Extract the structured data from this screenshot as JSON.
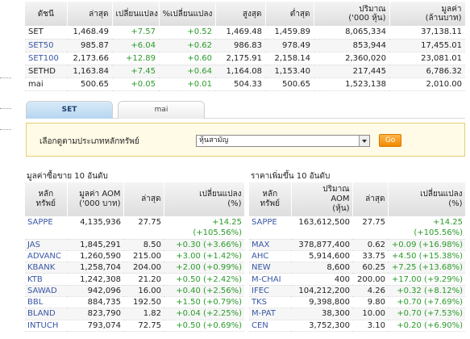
{
  "index_table": {
    "headers": [
      "ดัชนี",
      "ล่าสุด",
      "เปลี่ยนแปลง",
      "%เปลี่ยนแปลง",
      "สูงสุด",
      "ต่ำสุด",
      "ปริมาณ",
      "('000 หุ้น)",
      "มูลค่า",
      "(ล้านบาท)"
    ],
    "rows": [
      {
        "name": "SET",
        "last": "1,468.49",
        "change": "+7.57",
        "pct": "+0.52",
        "high": "1,469.48",
        "low": "1,459.89",
        "volume": "8,065,334",
        "value": "37,138.11"
      },
      {
        "name": "SET50",
        "last": "985.87",
        "change": "+6.04",
        "pct": "+0.62",
        "high": "986.83",
        "low": "978.49",
        "volume": "853,944",
        "value": "17,455.01"
      },
      {
        "name": "SET100",
        "last": "2,173.66",
        "change": "+12.89",
        "pct": "+0.60",
        "high": "2,175.91",
        "low": "2,158.14",
        "volume": "2,360,020",
        "value": "23,081.01"
      },
      {
        "name": "SETHD",
        "last": "1,163.84",
        "change": "+7.45",
        "pct": "+0.64",
        "high": "1,164.08",
        "low": "1,153.40",
        "volume": "217,445",
        "value": "6,786.32"
      },
      {
        "name": "mai",
        "last": "500.65",
        "change": "+0.05",
        "pct": "+0.01",
        "high": "504.33",
        "low": "500.65",
        "volume": "1,523,138",
        "value": "2,010.00"
      }
    ]
  },
  "tabs": {
    "set": "SET",
    "mai": "mai"
  },
  "filter": {
    "label": "เลือกดูตามประเภทหลักทรัพย์",
    "selected": "หุ้นสามัญ",
    "go": "Go"
  },
  "left_section": {
    "title": "มูลค่าซื้อขาย 10 อันดับ",
    "headers": [
      "หลัก",
      "ทรัพย์",
      "มูลค่า AOM",
      "('000 บาท)",
      "ล่าสุด",
      "เปลี่ยนแปลง",
      "(%)"
    ],
    "rows": [
      {
        "name": "SAPPE",
        "aom": "4,135,936",
        "last": "27.75",
        "change": "+14.25",
        "pct": "(+105.56%)"
      },
      {
        "name": "JAS",
        "aom": "1,845,291",
        "last": "8.50",
        "change": "+0.30 (+3.66%)"
      },
      {
        "name": "ADVANC",
        "aom": "1,260,590",
        "last": "215.00",
        "change": "+3.00 (+1.42%)"
      },
      {
        "name": "KBANK",
        "aom": "1,258,704",
        "last": "204.00",
        "change": "+2.00 (+0.99%)"
      },
      {
        "name": "KTB",
        "aom": "1,242,308",
        "last": "21.20",
        "change": "+0.50 (+2.42%)"
      },
      {
        "name": "SAWAD",
        "aom": "942,096",
        "last": "16.00",
        "change": "+0.40 (+2.56%)"
      },
      {
        "name": "BBL",
        "aom": "884,735",
        "last": "192.50",
        "change": "+1.50 (+0.79%)"
      },
      {
        "name": "BLAND",
        "aom": "823,790",
        "last": "1.82",
        "change": "+0.04 (+2.25%)"
      },
      {
        "name": "INTUCH",
        "aom": "793,074",
        "last": "72.75",
        "change": "+0.50 (+0.69%)"
      }
    ]
  },
  "right_section": {
    "title": "ราคาเพิ่มขึ้น 10 อันดับ",
    "headers": [
      "หลัก",
      "ทรัพย์",
      "ปริมาณ",
      "AOM",
      "(หุ้น)",
      "ล่าสุด",
      "เปลี่ยนแปลง",
      "(%)"
    ],
    "rows": [
      {
        "name": "SAPPE",
        "aom": "163,612,500",
        "last": "27.75",
        "change": "+14.25",
        "pct": "(+105.56%)"
      },
      {
        "name": "MAX",
        "aom": "378,877,400",
        "last": "0.62",
        "change": "+0.09 (+16.98%)"
      },
      {
        "name": "AHC",
        "aom": "5,914,600",
        "last": "33.75",
        "change": "+4.50 (+15.38%)"
      },
      {
        "name": "NEW",
        "aom": "8,600",
        "last": "60.25",
        "change": "+7.25 (+13.68%)"
      },
      {
        "name": "M-CHAI",
        "aom": "400",
        "last": "200.00",
        "change": "+17.00 (+9.29%)"
      },
      {
        "name": "IFEC",
        "aom": "104,212,200",
        "last": "4.26",
        "change": "+0.32 (+8.12%)"
      },
      {
        "name": "TKS",
        "aom": "9,398,800",
        "last": "9.80",
        "change": "+0.70 (+7.69%)"
      },
      {
        "name": "M-PAT",
        "aom": "38,300",
        "last": "10.00",
        "change": "+0.70 (+7.53%)"
      },
      {
        "name": "CEN",
        "aom": "3,752,300",
        "last": "3.10",
        "change": "+0.20 (+6.90%)"
      }
    ]
  }
}
